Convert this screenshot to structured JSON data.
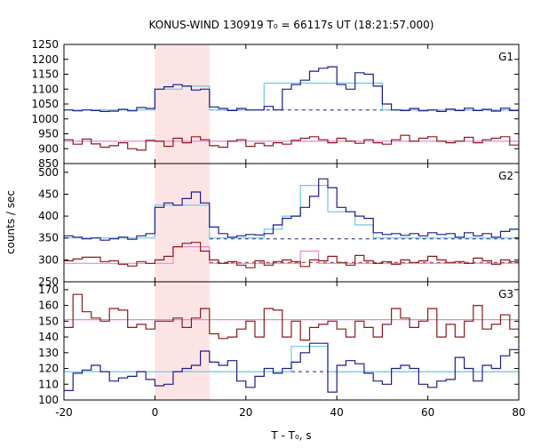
{
  "chart_data": {
    "type": "line",
    "title": "KONUS-WIND 130919 T₀ = 66117s UT (18:21:57.000)",
    "xlabel": "T - T₀, s",
    "ylabel": "counts / sec",
    "xlim": [
      -20,
      80
    ],
    "xticks": [
      "-20",
      "0",
      "20",
      "40",
      "60",
      "80"
    ],
    "highlight_interval": [
      0,
      12
    ],
    "highlight_color": "#fde4e4",
    "colors": {
      "blue": "#1c1c8c",
      "red": "#8b1a1a",
      "cyan": "#6ec6e6",
      "pink": "#e48ad8"
    },
    "panels": [
      {
        "name": "G1",
        "ylim": [
          850,
          1250
        ],
        "yticks": [
          "850",
          "900",
          "950",
          "1000",
          "1050",
          "1100",
          "1150",
          "1200",
          "1250"
        ],
        "bin_edges": [
          -20,
          -18,
          -16,
          -14,
          -12,
          -10,
          -8,
          -6,
          -4,
          -2,
          0,
          2,
          4,
          6,
          8,
          10,
          12,
          14,
          16,
          18,
          20,
          22,
          24,
          26,
          28,
          30,
          32,
          34,
          36,
          38,
          40,
          42,
          44,
          46,
          48,
          50,
          52,
          54,
          56,
          58,
          60,
          62,
          64,
          66,
          68,
          70,
          72,
          74,
          76,
          78,
          80
        ],
        "blue_values": [
          1030,
          1027,
          1030,
          1028,
          1025,
          1026,
          1032,
          1027,
          1038,
          1035,
          1100,
          1108,
          1115,
          1110,
          1097,
          1100,
          1040,
          1035,
          1028,
          1035,
          1030,
          1030,
          1042,
          1030,
          1100,
          1115,
          1130,
          1160,
          1170,
          1175,
          1115,
          1100,
          1155,
          1150,
          1110,
          1050,
          1030,
          1028,
          1035,
          1027,
          1030,
          1025,
          1033,
          1028,
          1036,
          1028,
          1032,
          1026,
          1036,
          1028
        ],
        "red_values": [
          930,
          915,
          932,
          916,
          905,
          910,
          920,
          900,
          895,
          928,
          925,
          908,
          935,
          920,
          940,
          930,
          910,
          905,
          925,
          930,
          908,
          918,
          910,
          920,
          915,
          928,
          935,
          940,
          930,
          920,
          935,
          925,
          918,
          930,
          920,
          915,
          930,
          945,
          925,
          935,
          940,
          925,
          920,
          925,
          938,
          920,
          930,
          935,
          940,
          912
        ],
        "model_cyan": [
          [
            -20,
            1030
          ],
          [
            0,
            1030
          ],
          [
            0,
            1100
          ],
          [
            6,
            1100
          ],
          [
            6,
            1110
          ],
          [
            12,
            1110
          ],
          [
            12,
            1030
          ],
          [
            24,
            1030
          ],
          [
            24,
            1120
          ],
          [
            50,
            1120
          ],
          [
            50,
            1030
          ],
          [
            80,
            1030
          ]
        ],
        "model_pink": [
          [
            -20,
            925
          ],
          [
            80,
            925
          ]
        ],
        "bg_blue_dashed": [
          [
            12,
            1030
          ],
          [
            80,
            1030
          ]
        ],
        "bg_red_dashed": []
      },
      {
        "name": "G2",
        "ylim": [
          250,
          520
        ],
        "yticks": [
          "250",
          "300",
          "350",
          "400",
          "450",
          "500"
        ],
        "bin_edges": [
          -20,
          -18,
          -16,
          -14,
          -12,
          -10,
          -8,
          -6,
          -4,
          -2,
          0,
          2,
          4,
          6,
          8,
          10,
          12,
          14,
          16,
          18,
          20,
          22,
          24,
          26,
          28,
          30,
          32,
          34,
          36,
          38,
          40,
          42,
          44,
          46,
          48,
          50,
          52,
          54,
          56,
          58,
          60,
          62,
          64,
          66,
          68,
          70,
          72,
          74,
          76,
          78,
          80
        ],
        "blue_values": [
          355,
          352,
          348,
          350,
          345,
          348,
          352,
          347,
          355,
          360,
          420,
          430,
          425,
          440,
          455,
          430,
          375,
          360,
          352,
          355,
          358,
          357,
          360,
          380,
          395,
          400,
          420,
          445,
          485,
          465,
          420,
          410,
          400,
          395,
          362,
          358,
          360,
          356,
          360,
          355,
          362,
          358,
          360,
          352,
          362,
          355,
          360,
          352,
          365,
          370
        ],
        "red_values": [
          298,
          302,
          306,
          306,
          296,
          298,
          290,
          286,
          296,
          292,
          300,
          308,
          330,
          338,
          340,
          320,
          300,
          292,
          296,
          288,
          282,
          298,
          288,
          296,
          300,
          296,
          285,
          300,
          298,
          308,
          294,
          288,
          310,
          298,
          292,
          296,
          290,
          300,
          294,
          298,
          308,
          300,
          294,
          296,
          292,
          304,
          298,
          290,
          300,
          296
        ],
        "model_cyan": [
          [
            -20,
            350
          ],
          [
            0,
            350
          ],
          [
            0,
            425
          ],
          [
            12,
            425
          ],
          [
            12,
            350
          ],
          [
            24,
            350
          ],
          [
            24,
            370
          ],
          [
            28,
            370
          ],
          [
            28,
            400
          ],
          [
            32,
            400
          ],
          [
            32,
            470
          ],
          [
            38,
            470
          ],
          [
            38,
            410
          ],
          [
            44,
            410
          ],
          [
            44,
            380
          ],
          [
            48,
            380
          ],
          [
            48,
            350
          ],
          [
            80,
            350
          ]
        ],
        "model_pink": [
          [
            -20,
            292
          ],
          [
            4,
            292
          ],
          [
            4,
            330
          ],
          [
            12,
            330
          ],
          [
            12,
            292
          ],
          [
            32,
            292
          ],
          [
            32,
            320
          ],
          [
            36,
            320
          ],
          [
            36,
            292
          ],
          [
            80,
            292
          ]
        ],
        "bg_blue_dashed": [
          [
            12,
            348
          ],
          [
            80,
            348
          ]
        ],
        "bg_red_dashed": [
          [
            12,
            294
          ],
          [
            80,
            294
          ]
        ]
      },
      {
        "name": "G3",
        "ylim": [
          100,
          175
        ],
        "yticks": [
          "100",
          "110",
          "120",
          "130",
          "140",
          "150",
          "160",
          "170"
        ],
        "bin_edges": [
          -20,
          -18,
          -16,
          -14,
          -12,
          -10,
          -8,
          -6,
          -4,
          -2,
          0,
          2,
          4,
          6,
          8,
          10,
          12,
          14,
          16,
          18,
          20,
          22,
          24,
          26,
          28,
          30,
          32,
          34,
          36,
          38,
          40,
          42,
          44,
          46,
          48,
          50,
          52,
          54,
          56,
          58,
          60,
          62,
          64,
          66,
          68,
          70,
          72,
          74,
          76,
          78,
          80
        ],
        "blue_values": [
          106,
          117,
          119,
          122,
          118,
          112,
          114,
          115,
          118,
          113,
          109,
          110,
          118,
          120,
          122,
          131,
          124,
          122,
          125,
          112,
          108,
          115,
          120,
          117,
          120,
          124,
          130,
          136,
          136,
          105,
          122,
          125,
          123,
          117,
          112,
          110,
          120,
          122,
          120,
          110,
          108,
          112,
          113,
          127,
          120,
          112,
          122,
          120,
          128,
          132
        ],
        "red_values": [
          146,
          167,
          156,
          152,
          150,
          158,
          157,
          146,
          148,
          145,
          150,
          150,
          152,
          146,
          152,
          158,
          142,
          139,
          140,
          145,
          150,
          140,
          158,
          157,
          140,
          150,
          138,
          146,
          148,
          150,
          145,
          140,
          150,
          146,
          140,
          148,
          158,
          152,
          146,
          150,
          158,
          140,
          148,
          140,
          150,
          160,
          145,
          148,
          154,
          145
        ],
        "model_cyan": [
          [
            -20,
            118
          ],
          [
            0,
            118
          ],
          [
            12,
            118
          ],
          [
            30,
            118
          ],
          [
            30,
            134
          ],
          [
            38,
            134
          ],
          [
            38,
            118
          ],
          [
            80,
            118
          ]
        ],
        "model_pink": [
          [
            -20,
            151
          ],
          [
            80,
            151
          ]
        ],
        "bg_blue_dashed": [
          [
            30,
            118
          ],
          [
            80,
            118
          ]
        ],
        "bg_red_dashed": []
      }
    ]
  }
}
